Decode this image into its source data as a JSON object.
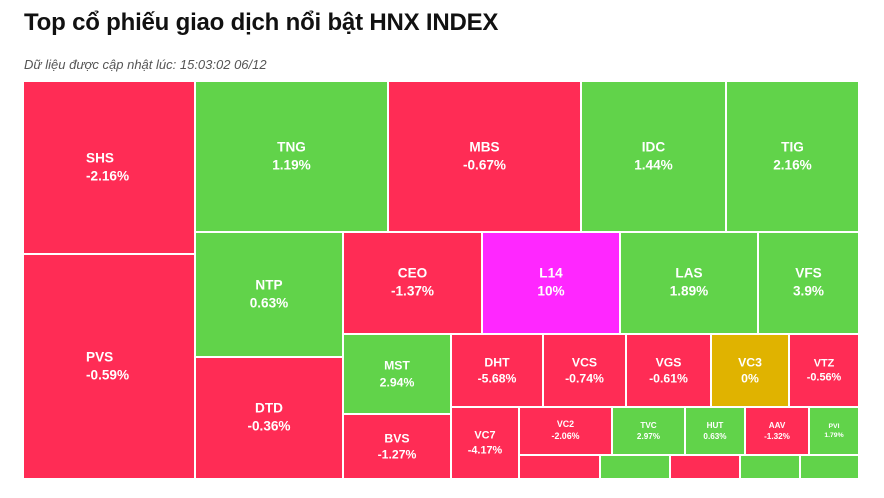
{
  "header": {
    "title": "Top cổ phiếu giao dịch nổi bật HNX INDEX",
    "subtitle": "Dữ liệu được cập nhật lúc: 15:03:02 06/12"
  },
  "colors": {
    "up": "#61d34a",
    "down": "#ff2c55",
    "ceiling": "#ff27ff",
    "reference": "#e0b300"
  },
  "chart_data": {
    "type": "treemap",
    "title": "Top cổ phiếu giao dịch nổi bật HNX INDEX",
    "items": [
      {
        "symbol": "SHS",
        "change": "-2.16%",
        "value": -2.16
      },
      {
        "symbol": "PVS",
        "change": "-0.59%",
        "value": -0.59
      },
      {
        "symbol": "TNG",
        "change": "1.19%",
        "value": 1.19
      },
      {
        "symbol": "MBS",
        "change": "-0.67%",
        "value": -0.67
      },
      {
        "symbol": "IDC",
        "change": "1.44%",
        "value": 1.44
      },
      {
        "symbol": "TIG",
        "change": "2.16%",
        "value": 2.16
      },
      {
        "symbol": "NTP",
        "change": "0.63%",
        "value": 0.63
      },
      {
        "symbol": "CEO",
        "change": "-1.37%",
        "value": -1.37
      },
      {
        "symbol": "L14",
        "change": "10%",
        "value": 10
      },
      {
        "symbol": "LAS",
        "change": "1.89%",
        "value": 1.89
      },
      {
        "symbol": "VFS",
        "change": "3.9%",
        "value": 3.9
      },
      {
        "symbol": "DTD",
        "change": "-0.36%",
        "value": -0.36
      },
      {
        "symbol": "MST",
        "change": "2.94%",
        "value": 2.94
      },
      {
        "symbol": "DHT",
        "change": "-5.68%",
        "value": -5.68
      },
      {
        "symbol": "VCS",
        "change": "-0.74%",
        "value": -0.74
      },
      {
        "symbol": "VGS",
        "change": "-0.61%",
        "value": -0.61
      },
      {
        "symbol": "VC3",
        "change": "0%",
        "value": 0
      },
      {
        "symbol": "VTZ",
        "change": "-0.56%",
        "value": -0.56
      },
      {
        "symbol": "BVS",
        "change": "-1.27%",
        "value": -1.27
      },
      {
        "symbol": "VC7",
        "change": "-4.17%",
        "value": -4.17
      },
      {
        "symbol": "VC2",
        "change": "-2.06%",
        "value": -2.06
      },
      {
        "symbol": "TVC",
        "change": "2.97%",
        "value": 2.97
      },
      {
        "symbol": "HUT",
        "change": "0.63%",
        "value": 0.63
      },
      {
        "symbol": "AAV",
        "change": "-1.32%",
        "value": -1.32
      },
      {
        "symbol": "PVI",
        "change": "1.79%",
        "value": 1.79
      },
      {
        "symbol": "",
        "change": "",
        "value": -1
      },
      {
        "symbol": "",
        "change": "",
        "value": 1
      },
      {
        "symbol": "",
        "change": "",
        "value": -1
      },
      {
        "symbol": "",
        "change": "",
        "value": 1
      }
    ]
  }
}
